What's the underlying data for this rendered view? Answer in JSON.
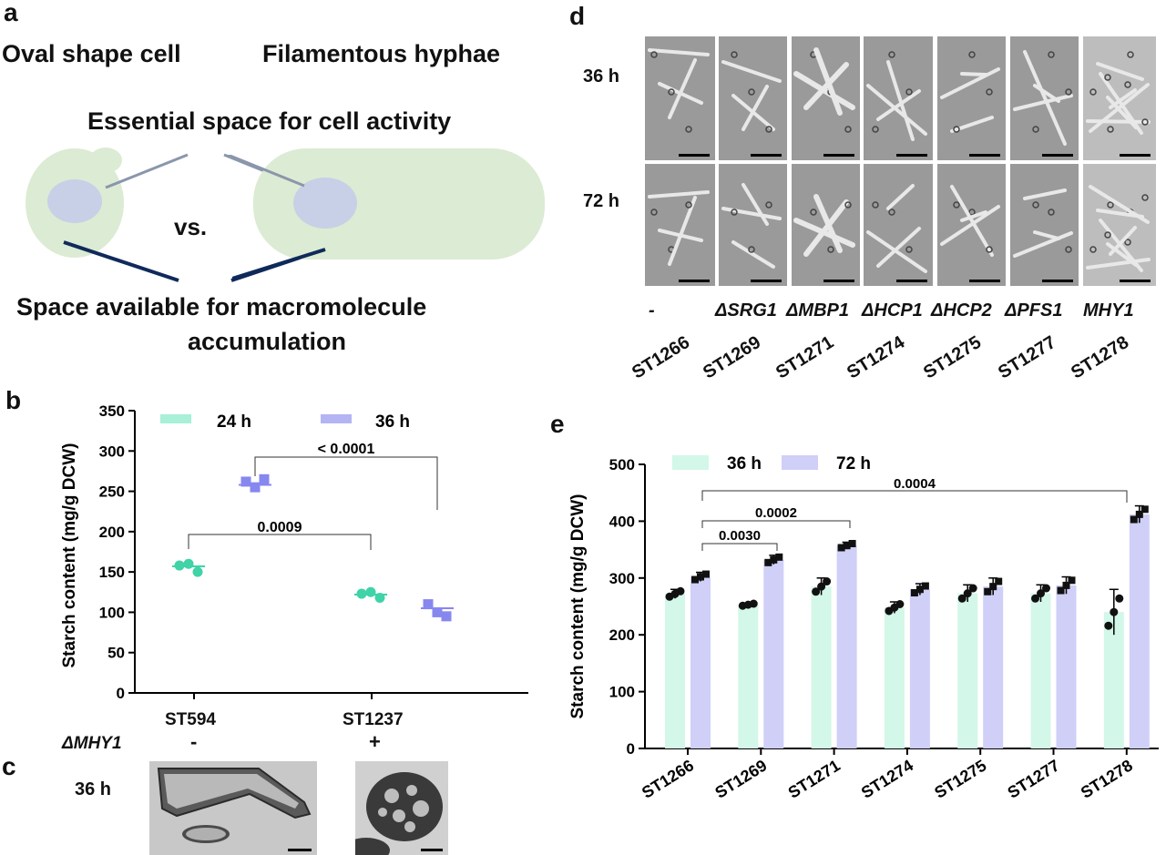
{
  "panel_a": {
    "letter": "a",
    "left_title": "Oval shape cell",
    "right_title": "Filamentous hyphae",
    "top_label": "Essential space for cell activity",
    "vs": "vs.",
    "bottom_label_line1": "Space available for macromolecule",
    "bottom_label_line2": "accumulation"
  },
  "panel_b": {
    "letter": "b",
    "legend": [
      "24 h",
      "36 h"
    ],
    "sig1": "< 0.0001",
    "sig2": "0.0009",
    "strain_label": "ΔMHY1",
    "groups": [
      {
        "strain": "ST594",
        "mark": "-"
      },
      {
        "strain": "ST1237",
        "mark": "+"
      }
    ]
  },
  "panel_c": {
    "letter": "c",
    "time": "36 h"
  },
  "panel_d": {
    "letter": "d",
    "rows": [
      "36 h",
      "72 h"
    ],
    "genotypes": [
      "-",
      "ΔSRG1",
      "ΔMBP1",
      "ΔHCP1",
      "ΔHCP2",
      "ΔPFS1",
      "MHY1"
    ],
    "strains": [
      "ST1266",
      "ST1269",
      "ST1271",
      "ST1274",
      "ST1275",
      "ST1277",
      "ST1278"
    ]
  },
  "panel_e": {
    "letter": "e",
    "sig": [
      "0.0004",
      "0.0002",
      "0.0030"
    ]
  },
  "colors": {
    "h24": "#a8f0d8",
    "h36": "#b4b4f4",
    "h72": "#cfcff8",
    "h36e": "#d3f7e8",
    "cell": "#dcebd3",
    "vacuole": "#c7d0e6"
  },
  "chart_data": [
    {
      "type": "scatter",
      "panel": "b",
      "ylabel": "Starch content (mg/g DCW)",
      "ylim": [
        0,
        350
      ],
      "yticks": [
        0,
        50,
        100,
        150,
        200,
        250,
        300,
        350
      ],
      "categories": [
        "ST594",
        "ST1237"
      ],
      "series": [
        {
          "name": "24 h",
          "values": [
            157,
            122
          ],
          "points": [
            [
              158,
              160,
              150
            ],
            [
              123,
              125,
              118
            ]
          ]
        },
        {
          "name": "36 h",
          "values": [
            258,
            105
          ],
          "points": [
            [
              262,
              255,
              265
            ],
            [
              110,
              100,
              95
            ]
          ]
        }
      ]
    },
    {
      "type": "bar",
      "panel": "e",
      "ylabel": "Starch content (mg/g DCW)",
      "ylim": [
        0,
        500
      ],
      "yticks": [
        0,
        100,
        200,
        300,
        400,
        500
      ],
      "categories": [
        "ST1266",
        "ST1269",
        "ST1271",
        "ST1274",
        "ST1275",
        "ST1277",
        "ST1278"
      ],
      "series": [
        {
          "name": "36 h",
          "values": [
            272,
            253,
            285,
            248,
            273,
            273,
            240
          ],
          "err": [
            8,
            3,
            15,
            10,
            15,
            15,
            40
          ]
        },
        {
          "name": "72 h",
          "values": [
            302,
            332,
            357,
            280,
            285,
            287,
            412
          ],
          "err": [
            8,
            8,
            6,
            10,
            15,
            15,
            15
          ]
        }
      ]
    }
  ]
}
